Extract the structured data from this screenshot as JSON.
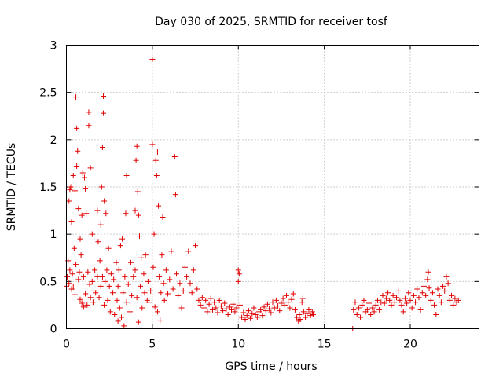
{
  "chart_data": {
    "type": "scatter",
    "title": "Day 030 of 2025, SRMTID for receiver tosf",
    "xlabel": "GPS time / hours",
    "ylabel": "SRMTID / TECUs",
    "xlim": [
      0,
      24
    ],
    "ylim": [
      0,
      3
    ],
    "xticks": [
      "0",
      "5",
      "10",
      "15",
      "20"
    ],
    "xtick_values": [
      0,
      5,
      10,
      15,
      20
    ],
    "yticks": [
      "0",
      "0.5",
      "1",
      "1.5",
      "2",
      "2.5",
      "3"
    ],
    "ytick_values": [
      0,
      0.5,
      1,
      1.5,
      2,
      2.5,
      3
    ],
    "grid": true,
    "marker": "+",
    "color": "#e00000",
    "series": [
      {
        "name": "SRMTID",
        "points": [
          [
            0.0,
            0.45
          ],
          [
            0.05,
            0.55
          ],
          [
            0.1,
            0.72
          ],
          [
            0.15,
            1.35
          ],
          [
            0.15,
            0.48
          ],
          [
            0.2,
            1.47
          ],
          [
            0.2,
            0.62
          ],
          [
            0.25,
            1.5
          ],
          [
            0.3,
            0.42
          ],
          [
            0.3,
            1.13
          ],
          [
            0.35,
            0.58
          ],
          [
            0.4,
            1.62
          ],
          [
            0.4,
            0.44
          ],
          [
            0.45,
            0.85
          ],
          [
            0.5,
            1.46
          ],
          [
            0.5,
            0.36
          ],
          [
            0.55,
            2.45
          ],
          [
            0.55,
            0.68
          ],
          [
            0.6,
            2.12
          ],
          [
            0.6,
            1.72
          ],
          [
            0.65,
            1.88
          ],
          [
            0.7,
            0.52
          ],
          [
            0.7,
            1.27
          ],
          [
            0.75,
            0.6
          ],
          [
            0.8,
            0.95
          ],
          [
            0.8,
            0.31
          ],
          [
            0.85,
            0.78
          ],
          [
            0.9,
            0.27
          ],
          [
            0.9,
            1.2
          ],
          [
            0.95,
            1.65
          ],
          [
            1.0,
            0.55
          ],
          [
            1.0,
            0.23
          ],
          [
            1.05,
            1.6
          ],
          [
            1.1,
            1.48
          ],
          [
            1.1,
            0.37
          ],
          [
            1.15,
            1.22
          ],
          [
            1.2,
            0.25
          ],
          [
            1.25,
            0.6
          ],
          [
            1.3,
            2.29
          ],
          [
            1.3,
            2.15
          ],
          [
            1.35,
            0.47
          ],
          [
            1.4,
            1.7
          ],
          [
            1.4,
            0.33
          ],
          [
            1.5,
            0.5
          ],
          [
            1.5,
            1.0
          ],
          [
            1.55,
            0.28
          ],
          [
            1.6,
            0.4
          ],
          [
            1.65,
            0.62
          ],
          [
            1.7,
            0.38
          ],
          [
            1.8,
            1.25
          ],
          [
            1.8,
            0.55
          ],
          [
            1.85,
            0.92
          ],
          [
            1.9,
            0.33
          ],
          [
            1.95,
            0.72
          ],
          [
            2.0,
            1.1
          ],
          [
            2.0,
            0.45
          ],
          [
            2.05,
            1.5
          ],
          [
            2.1,
            1.92
          ],
          [
            2.1,
            0.55
          ],
          [
            2.15,
            2.46
          ],
          [
            2.15,
            2.28
          ],
          [
            2.2,
            1.35
          ],
          [
            2.2,
            0.25
          ],
          [
            2.25,
            0.5
          ],
          [
            2.3,
            1.22
          ],
          [
            2.35,
            0.62
          ],
          [
            2.4,
            0.3
          ],
          [
            2.45,
            0.85
          ],
          [
            2.5,
            0.45
          ],
          [
            2.55,
            0.18
          ],
          [
            2.6,
            0.58
          ],
          [
            2.7,
            0.38
          ],
          [
            2.75,
            0.52
          ],
          [
            2.8,
            0.15
          ],
          [
            2.9,
            0.7
          ],
          [
            2.95,
            0.3
          ],
          [
            3.0,
            0.45
          ],
          [
            3.0,
            0.08
          ],
          [
            3.05,
            0.62
          ],
          [
            3.1,
            0.22
          ],
          [
            3.15,
            0.88
          ],
          [
            3.2,
            0.12
          ],
          [
            3.25,
            0.95
          ],
          [
            3.3,
            0.38
          ],
          [
            3.35,
            0.03
          ],
          [
            3.4,
            0.55
          ],
          [
            3.45,
            1.22
          ],
          [
            3.5,
            1.62
          ],
          [
            3.5,
            0.28
          ],
          [
            3.6,
            0.47
          ],
          [
            3.7,
            0.18
          ],
          [
            3.75,
            0.7
          ],
          [
            3.8,
            0.35
          ],
          [
            3.9,
            0.55
          ],
          [
            4.0,
            1.25
          ],
          [
            4.0,
            0.62
          ],
          [
            4.05,
            1.78
          ],
          [
            4.1,
            1.93
          ],
          [
            4.1,
            0.33
          ],
          [
            4.15,
            1.45
          ],
          [
            4.2,
            1.2
          ],
          [
            4.2,
            0.07
          ],
          [
            4.25,
            0.98
          ],
          [
            4.3,
            0.45
          ],
          [
            4.35,
            0.75
          ],
          [
            4.4,
            0.22
          ],
          [
            4.5,
            0.58
          ],
          [
            4.55,
            0.38
          ],
          [
            4.6,
            0.78
          ],
          [
            4.7,
            0.3
          ],
          [
            4.75,
            0.5
          ],
          [
            4.8,
            0.28
          ],
          [
            4.9,
            0.4
          ],
          [
            5.0,
            2.85
          ],
          [
            5.0,
            1.95
          ],
          [
            5.05,
            0.65
          ],
          [
            5.1,
            1.0
          ],
          [
            5.15,
            0.23
          ],
          [
            5.2,
            1.78
          ],
          [
            5.25,
            1.62
          ],
          [
            5.3,
            1.87
          ],
          [
            5.3,
            0.18
          ],
          [
            5.35,
            1.3
          ],
          [
            5.4,
            0.55
          ],
          [
            5.45,
            0.09
          ],
          [
            5.5,
            0.38
          ],
          [
            5.55,
            0.78
          ],
          [
            5.6,
            1.18
          ],
          [
            5.65,
            0.48
          ],
          [
            5.7,
            0.3
          ],
          [
            5.8,
            0.62
          ],
          [
            5.9,
            0.37
          ],
          [
            6.0,
            0.52
          ],
          [
            6.1,
            0.82
          ],
          [
            6.2,
            0.42
          ],
          [
            6.3,
            1.82
          ],
          [
            6.35,
            1.42
          ],
          [
            6.4,
            0.58
          ],
          [
            6.5,
            0.35
          ],
          [
            6.6,
            0.48
          ],
          [
            6.7,
            0.22
          ],
          [
            6.8,
            0.4
          ],
          [
            6.9,
            0.65
          ],
          [
            7.0,
            0.55
          ],
          [
            7.1,
            0.82
          ],
          [
            7.2,
            0.48
          ],
          [
            7.3,
            0.38
          ],
          [
            7.4,
            0.62
          ],
          [
            7.5,
            0.88
          ],
          [
            7.6,
            0.42
          ],
          [
            7.7,
            0.3
          ],
          [
            7.8,
            0.25
          ],
          [
            7.9,
            0.33
          ],
          [
            8.0,
            0.22
          ],
          [
            8.1,
            0.3
          ],
          [
            8.2,
            0.18
          ],
          [
            8.3,
            0.26
          ],
          [
            8.4,
            0.32
          ],
          [
            8.5,
            0.2
          ],
          [
            8.6,
            0.28
          ],
          [
            8.7,
            0.22
          ],
          [
            8.8,
            0.17
          ],
          [
            8.9,
            0.3
          ],
          [
            9.0,
            0.24
          ],
          [
            9.1,
            0.19
          ],
          [
            9.2,
            0.27
          ],
          [
            9.3,
            0.21
          ],
          [
            9.4,
            0.15
          ],
          [
            9.5,
            0.23
          ],
          [
            9.6,
            0.2
          ],
          [
            9.7,
            0.26
          ],
          [
            9.8,
            0.18
          ],
          [
            9.9,
            0.22
          ],
          [
            10.0,
            0.62
          ],
          [
            10.0,
            0.5
          ],
          [
            10.05,
            0.58
          ],
          [
            10.1,
            0.25
          ],
          [
            10.2,
            0.12
          ],
          [
            10.3,
            0.17
          ],
          [
            10.4,
            0.1
          ],
          [
            10.5,
            0.14
          ],
          [
            10.6,
            0.19
          ],
          [
            10.7,
            0.11
          ],
          [
            10.8,
            0.16
          ],
          [
            10.9,
            0.22
          ],
          [
            11.0,
            0.15
          ],
          [
            11.1,
            0.12
          ],
          [
            11.2,
            0.18
          ],
          [
            11.3,
            0.2
          ],
          [
            11.4,
            0.14
          ],
          [
            11.5,
            0.23
          ],
          [
            11.6,
            0.19
          ],
          [
            11.7,
            0.26
          ],
          [
            11.8,
            0.21
          ],
          [
            11.9,
            0.17
          ],
          [
            12.0,
            0.28
          ],
          [
            12.1,
            0.22
          ],
          [
            12.2,
            0.3
          ],
          [
            12.3,
            0.24
          ],
          [
            12.4,
            0.19
          ],
          [
            12.5,
            0.27
          ],
          [
            12.6,
            0.32
          ],
          [
            12.7,
            0.25
          ],
          [
            12.8,
            0.35
          ],
          [
            12.9,
            0.28
          ],
          [
            13.0,
            0.22
          ],
          [
            13.1,
            0.31
          ],
          [
            13.2,
            0.37
          ],
          [
            13.3,
            0.2
          ],
          [
            13.4,
            0.12
          ],
          [
            13.5,
            0.08
          ],
          [
            13.55,
            0.15
          ],
          [
            13.6,
            0.1
          ],
          [
            13.7,
            0.28
          ],
          [
            13.75,
            0.32
          ],
          [
            13.8,
            0.18
          ],
          [
            13.9,
            0.12
          ],
          [
            14.0,
            0.16
          ],
          [
            14.1,
            0.2
          ],
          [
            14.2,
            0.14
          ],
          [
            14.3,
            0.18
          ],
          [
            14.35,
            0.15
          ],
          [
            16.65,
            0.0
          ],
          [
            16.7,
            0.2
          ],
          [
            16.8,
            0.28
          ],
          [
            16.9,
            0.15
          ],
          [
            17.0,
            0.22
          ],
          [
            17.1,
            0.12
          ],
          [
            17.2,
            0.25
          ],
          [
            17.3,
            0.3
          ],
          [
            17.4,
            0.18
          ],
          [
            17.5,
            0.2
          ],
          [
            17.6,
            0.27
          ],
          [
            17.7,
            0.15
          ],
          [
            17.8,
            0.22
          ],
          [
            17.9,
            0.18
          ],
          [
            18.0,
            0.25
          ],
          [
            18.1,
            0.3
          ],
          [
            18.2,
            0.2
          ],
          [
            18.3,
            0.28
          ],
          [
            18.4,
            0.35
          ],
          [
            18.5,
            0.27
          ],
          [
            18.6,
            0.32
          ],
          [
            18.7,
            0.38
          ],
          [
            18.8,
            0.3
          ],
          [
            18.9,
            0.25
          ],
          [
            19.0,
            0.35
          ],
          [
            19.1,
            0.28
          ],
          [
            19.2,
            0.33
          ],
          [
            19.3,
            0.4
          ],
          [
            19.4,
            0.3
          ],
          [
            19.5,
            0.25
          ],
          [
            19.6,
            0.18
          ],
          [
            19.7,
            0.32
          ],
          [
            19.8,
            0.27
          ],
          [
            19.9,
            0.38
          ],
          [
            20.0,
            0.3
          ],
          [
            20.1,
            0.22
          ],
          [
            20.2,
            0.35
          ],
          [
            20.3,
            0.28
          ],
          [
            20.4,
            0.42
          ],
          [
            20.5,
            0.33
          ],
          [
            20.6,
            0.2
          ],
          [
            20.7,
            0.38
          ],
          [
            20.8,
            0.45
          ],
          [
            20.9,
            0.35
          ],
          [
            21.0,
            0.52
          ],
          [
            21.05,
            0.6
          ],
          [
            21.1,
            0.43
          ],
          [
            21.2,
            0.3
          ],
          [
            21.3,
            0.38
          ],
          [
            21.4,
            0.25
          ],
          [
            21.5,
            0.15
          ],
          [
            21.6,
            0.42
          ],
          [
            21.7,
            0.35
          ],
          [
            21.8,
            0.28
          ],
          [
            21.9,
            0.45
          ],
          [
            22.0,
            0.4
          ],
          [
            22.1,
            0.55
          ],
          [
            22.2,
            0.48
          ],
          [
            22.3,
            0.3
          ],
          [
            22.4,
            0.35
          ],
          [
            22.5,
            0.25
          ],
          [
            22.6,
            0.32
          ],
          [
            22.7,
            0.28
          ],
          [
            22.8,
            0.3
          ]
        ]
      }
    ]
  }
}
